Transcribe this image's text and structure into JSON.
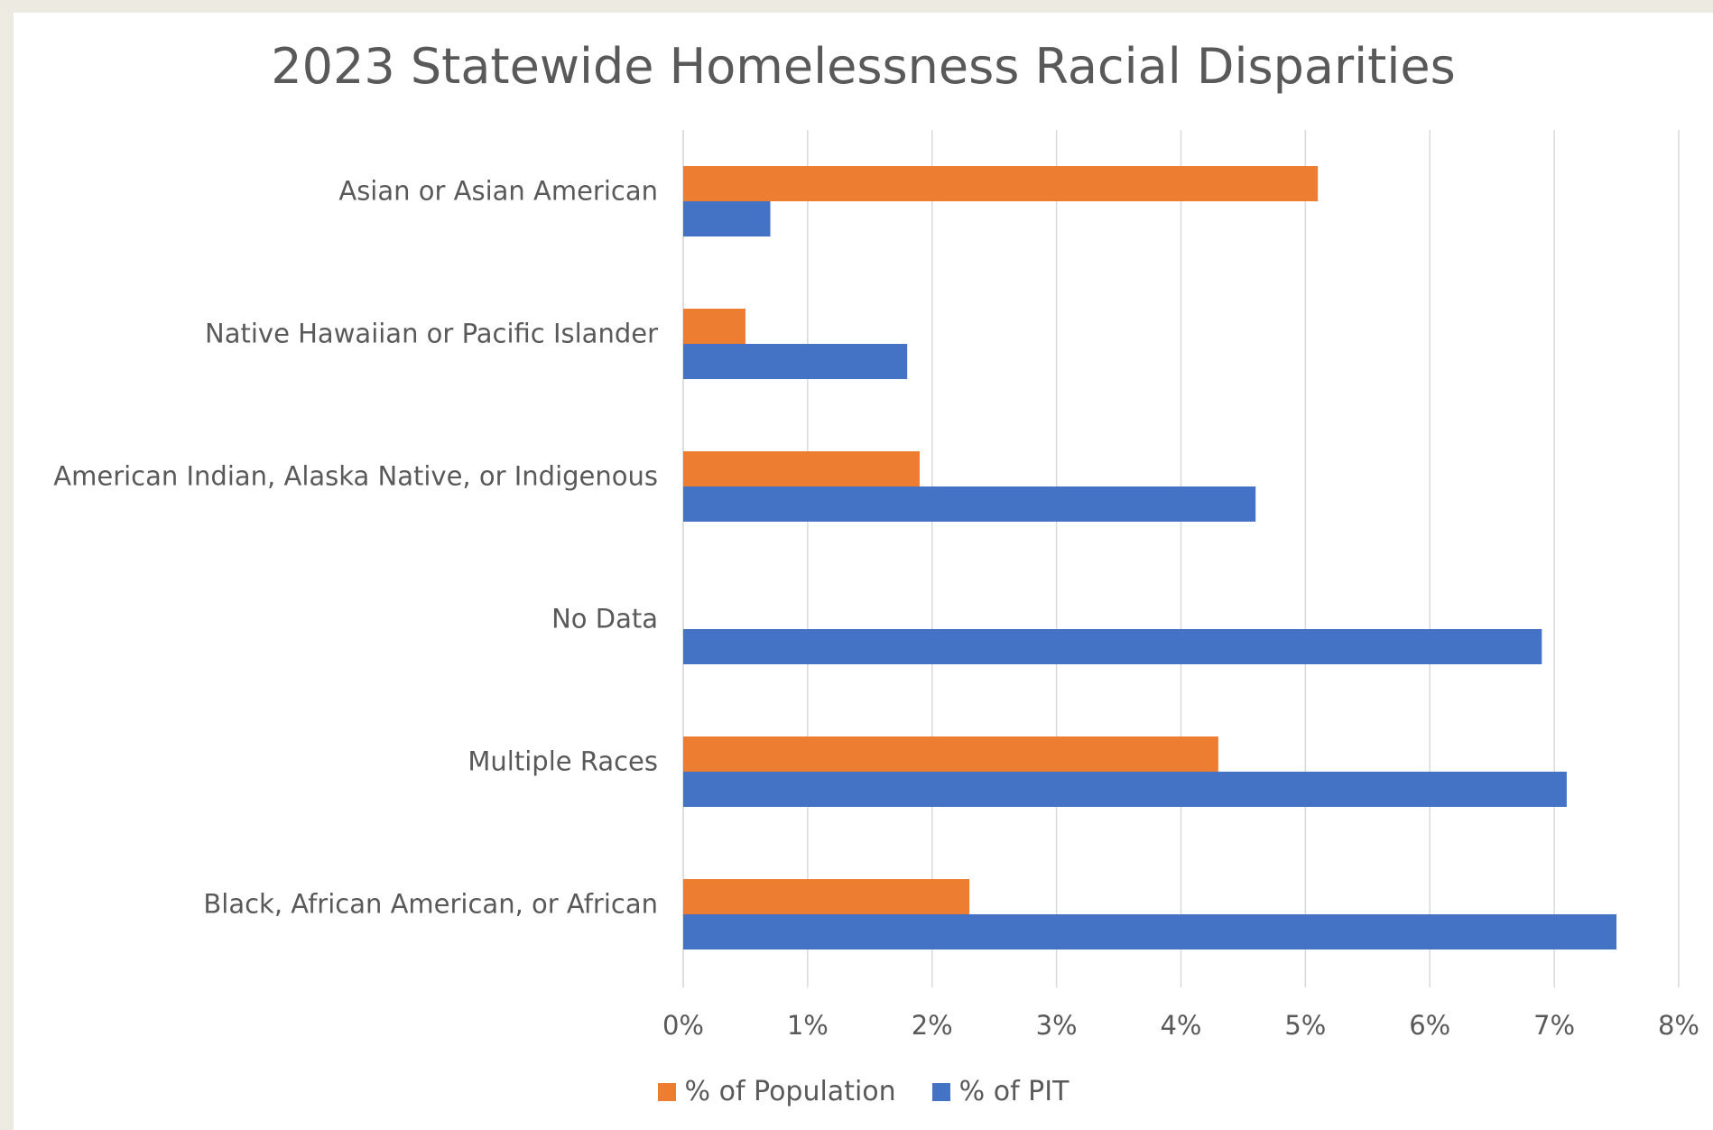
{
  "chart_data": {
    "type": "bar",
    "orientation": "horizontal",
    "title": "2023 Statewide Homelessness Racial Disparities",
    "categories": [
      "Asian or Asian American",
      "Native Hawaiian or Pacific Islander",
      "American Indian, Alaska Native, or Indigenous",
      "No Data",
      "Multiple Races",
      "Black, African American, or African"
    ],
    "series": [
      {
        "name": "% of Population",
        "color": "#ed7d31",
        "values": [
          5.1,
          0.5,
          1.9,
          null,
          4.3,
          2.3
        ]
      },
      {
        "name": "% of PIT",
        "color": "#4472c4",
        "values": [
          0.7,
          1.8,
          4.6,
          6.9,
          7.1,
          7.5
        ]
      }
    ],
    "x_ticks": [
      "0%",
      "1%",
      "2%",
      "3%",
      "4%",
      "5%",
      "6%",
      "7%",
      "8%"
    ],
    "xlim": [
      0,
      8
    ],
    "grid": true,
    "legend_position": "bottom"
  }
}
